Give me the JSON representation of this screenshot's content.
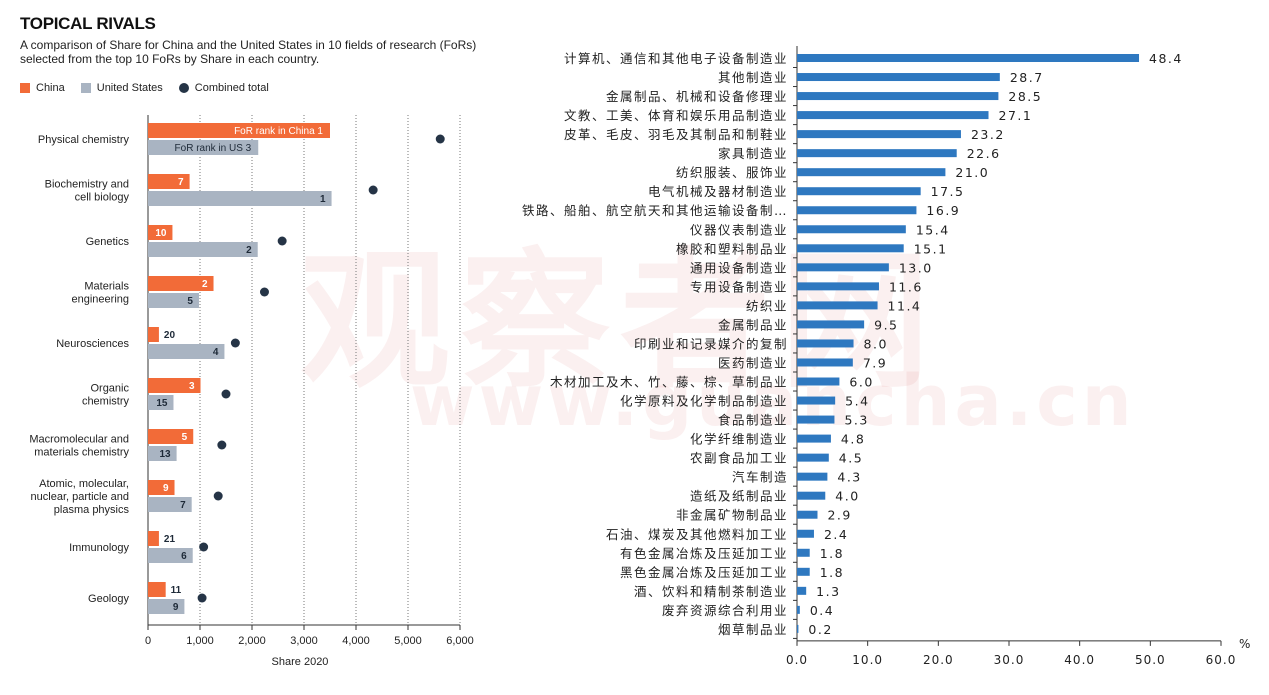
{
  "watermark": {
    "big": "观察者网",
    "small": "www.guancha.cn"
  },
  "left": {
    "title": "TOPICAL RIVALS",
    "subtitle": "A comparison of Share for China and the United States in 10 fields of research (FoRs) selected from the top 10 FoRs by Share in each country.",
    "legend": [
      {
        "label": "China",
        "color": "#f26b38",
        "shape": "square"
      },
      {
        "label": "United States",
        "color": "#a9b4c2",
        "shape": "square"
      },
      {
        "label": "Combined total",
        "color": "#253446",
        "shape": "circle"
      }
    ]
  },
  "colors": {
    "china": "#f26b38",
    "us": "#a9b4c2",
    "total": "#253446",
    "bar_right": "#2e78c0"
  },
  "chart_data": [
    {
      "type": "bar",
      "title": "TOPICAL RIVALS",
      "xlabel": "Share 2020",
      "ylabel": "",
      "xlim": [
        0,
        6000
      ],
      "xticks": [
        "0",
        "1,000",
        "2,000",
        "3,000",
        "4,000",
        "5,000",
        "6,000"
      ],
      "grid": true,
      "orientation": "horizontal",
      "categories": [
        "Physical chemistry",
        "Biochemistry and cell biology",
        "Genetics",
        "Materials engineering",
        "Neurosciences",
        "Organic chemistry",
        "Macromolecular and materials chemistry",
        "Atomic, molecular, nuclear, particle and plasma physics",
        "Immunology",
        "Geology"
      ],
      "category_lines": [
        [
          "Physical chemistry"
        ],
        [
          "Biochemistry and",
          "cell biology"
        ],
        [
          "Genetics"
        ],
        [
          "Materials",
          "engineering"
        ],
        [
          "Neurosciences"
        ],
        [
          "Organic",
          "chemistry"
        ],
        [
          "Macromolecular and",
          "materials chemistry"
        ],
        [
          "Atomic, molecular,",
          "nuclear, particle and",
          "plasma physics"
        ],
        [
          "Immunology"
        ],
        [
          "Geology"
        ]
      ],
      "series": [
        {
          "name": "China",
          "values": [
            3500,
            800,
            470,
            1260,
            210,
            1010,
            870,
            510,
            210,
            340
          ],
          "rank_labels": [
            "FoR rank in China 1",
            "7",
            "10",
            "2",
            "20",
            "3",
            "5",
            "9",
            "21",
            "11"
          ]
        },
        {
          "name": "United States",
          "values": [
            2120,
            3530,
            2110,
            980,
            1470,
            490,
            550,
            840,
            860,
            700
          ],
          "rank_labels": [
            "FoR rank in US 3",
            "1",
            "2",
            "5",
            "4",
            "15",
            "13",
            "7",
            "6",
            "9"
          ]
        },
        {
          "name": "Combined total",
          "values": [
            5620,
            4330,
            2580,
            2240,
            1680,
            1500,
            1420,
            1350,
            1070,
            1040
          ]
        }
      ]
    },
    {
      "type": "bar",
      "orientation": "horizontal",
      "title": "",
      "xlabel": "",
      "ylabel": "",
      "unit": "%",
      "xlim": [
        0,
        60
      ],
      "xticks": [
        "0.0",
        "10.0",
        "20.0",
        "30.0",
        "40.0",
        "50.0",
        "60.0"
      ],
      "categories": [
        "计算机、通信和其他电子设备制造业",
        "其他制造业",
        "金属制品、机械和设备修理业",
        "文教、工美、体育和娱乐用品制造业",
        "皮革、毛皮、羽毛及其制品和制鞋业",
        "家具制造业",
        "纺织服装、服饰业",
        "电气机械及器材制造业",
        "铁路、船舶、航空航天和其他运输设备制…",
        "仪器仪表制造业",
        "橡胶和塑料制品业",
        "通用设备制造业",
        "专用设备制造业",
        "纺织业",
        "金属制品业",
        "印刷业和记录媒介的复制",
        "医药制造业",
        "木材加工及木、竹、藤、棕、草制品业",
        "化学原料及化学制品制造业",
        "食品制造业",
        "化学纤维制造业",
        "农副食品加工业",
        "汽车制造",
        "造纸及纸制品业",
        "非金属矿物制品业",
        "石油、煤炭及其他燃料加工业",
        "有色金属冶炼及压延加工业",
        "黑色金属冶炼及压延加工业",
        "酒、饮料和精制茶制造业",
        "废弃资源综合利用业",
        "烟草制品业"
      ],
      "values": [
        48.4,
        28.7,
        28.5,
        27.1,
        23.2,
        22.6,
        21.0,
        17.5,
        16.9,
        15.4,
        15.1,
        13.0,
        11.6,
        11.4,
        9.5,
        8.0,
        7.9,
        6.0,
        5.4,
        5.3,
        4.8,
        4.5,
        4.3,
        4.0,
        2.9,
        2.4,
        1.8,
        1.8,
        1.3,
        0.4,
        0.2
      ],
      "value_labels": [
        "48.4",
        "28.7",
        "28.5",
        "27.1",
        "23.2",
        "22.6",
        "21.0",
        "17.5",
        "16.9",
        "15.4",
        "15.1",
        "13.0",
        "11.6",
        "11.4",
        "9.5",
        "8.0",
        "7.9",
        "6.0",
        "5.4",
        "5.3",
        "4.8",
        "4.5",
        "4.3",
        "4.0",
        "2.9",
        "2.4",
        "1.8",
        "1.8",
        "1.3",
        "0.4",
        "0.2"
      ]
    }
  ]
}
